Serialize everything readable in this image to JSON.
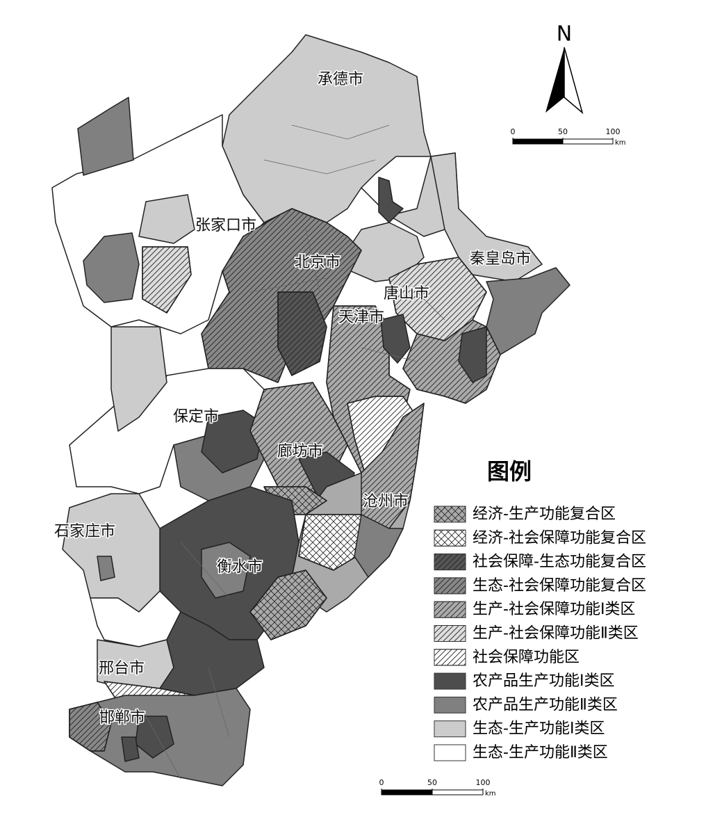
{
  "north": "N",
  "cities": [
    "承德市",
    "张家口市",
    "北京市",
    "秦皇岛市",
    "唐山市",
    "天津市",
    "保定市",
    "廊坊市",
    "沧州市",
    "石家庄市",
    "衡水市",
    "邢台市",
    "邯郸市"
  ],
  "legend": {
    "title": "图例",
    "items": [
      {
        "label": "经济-生产功能复合区",
        "color": "#aaaaaa",
        "hatch": "cross"
      },
      {
        "label": "经济-社会保障功能复合区",
        "color": "#ffffff",
        "hatch": "cross"
      },
      {
        "label": "社会保障-生态功能复合区",
        "color": "#555555",
        "hatch": "diagonal"
      },
      {
        "label": "生态-社会保障功能复合区",
        "color": "#888888",
        "hatch": "diagonal"
      },
      {
        "label": "生产-社会保障功能Ⅰ类区",
        "color": "#aaaaaa",
        "hatch": "diagonal"
      },
      {
        "label": "生产-社会保障功能Ⅱ类区",
        "color": "#dddddd",
        "hatch": "diagonal"
      },
      {
        "label": "社会保障功能区",
        "color": "#ffffff",
        "hatch": "diagonal"
      },
      {
        "label": "农产品生产功能Ⅰ类区",
        "color": "#4d4d4d",
        "hatch": "none"
      },
      {
        "label": "农产品生产功能Ⅱ类区",
        "color": "#808080",
        "hatch": "none"
      },
      {
        "label": "生态-生产功能Ⅰ类区",
        "color": "#cccccc",
        "hatch": "none"
      },
      {
        "label": "生态-生产功能Ⅱ类区",
        "color": "#ffffff",
        "hatch": "none"
      }
    ]
  },
  "scale_bars": [
    {
      "ticks": [
        0,
        50,
        100
      ],
      "unit": "km"
    },
    {
      "ticks": [
        0,
        50,
        100
      ],
      "unit": "km"
    }
  ]
}
